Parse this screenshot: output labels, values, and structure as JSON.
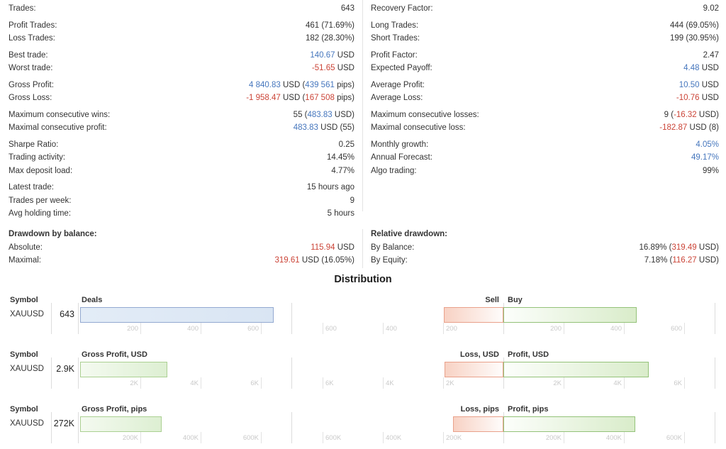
{
  "colors": {
    "k": "#333333",
    "b": "#4576bd",
    "r": "#cb4437",
    "tick": "#c9c9c9"
  },
  "stats": {
    "left": {
      "groups": [
        {
          "rows": [
            {
              "label": "Trades:",
              "value": [
                [
                  "643",
                  "k"
                ]
              ]
            }
          ]
        },
        {
          "rows": [
            {
              "label": "Profit Trades:",
              "value": [
                [
                  "461 (71.69%)",
                  "k"
                ]
              ]
            },
            {
              "label": "Loss Trades:",
              "value": [
                [
                  "182 (28.30%)",
                  "k"
                ]
              ]
            }
          ]
        },
        {
          "rows": [
            {
              "label": "Best trade:",
              "value": [
                [
                  "140.67",
                  "b"
                ],
                [
                  " USD",
                  "k"
                ]
              ]
            },
            {
              "label": "Worst trade:",
              "value": [
                [
                  "-51.65",
                  "r"
                ],
                [
                  " USD",
                  "k"
                ]
              ]
            }
          ]
        },
        {
          "rows": [
            {
              "label": "Gross Profit:",
              "value": [
                [
                  "4 840.83",
                  "b"
                ],
                [
                  " USD (",
                  "k"
                ],
                [
                  "439 561",
                  "b"
                ],
                [
                  " pips)",
                  "k"
                ]
              ]
            },
            {
              "label": "Gross Loss:",
              "value": [
                [
                  "-1 958.47",
                  "r"
                ],
                [
                  " USD (",
                  "k"
                ],
                [
                  "167 508",
                  "r"
                ],
                [
                  " pips)",
                  "k"
                ]
              ]
            }
          ]
        },
        {
          "rows": [
            {
              "label": "Maximum consecutive wins:",
              "value": [
                [
                  "55 (",
                  "k"
                ],
                [
                  "483.83",
                  "b"
                ],
                [
                  " USD)",
                  "k"
                ]
              ]
            },
            {
              "label": "Maximal consecutive profit:",
              "value": [
                [
                  "483.83",
                  "b"
                ],
                [
                  " USD (55)",
                  "k"
                ]
              ]
            }
          ]
        },
        {
          "rows": [
            {
              "label": "Sharpe Ratio:",
              "value": [
                [
                  "0.25",
                  "k"
                ]
              ]
            },
            {
              "label": "Trading activity:",
              "value": [
                [
                  "14.45%",
                  "k"
                ]
              ]
            },
            {
              "label": "Max deposit load:",
              "value": [
                [
                  "4.77%",
                  "k"
                ]
              ]
            }
          ]
        },
        {
          "rows": [
            {
              "label": "Latest trade:",
              "value": [
                [
                  "15 hours ago",
                  "k"
                ]
              ]
            },
            {
              "label": "Trades per week:",
              "value": [
                [
                  "9",
                  "k"
                ]
              ]
            },
            {
              "label": "Avg holding time:",
              "value": [
                [
                  "5 hours",
                  "k"
                ]
              ]
            }
          ]
        }
      ],
      "drawdown": {
        "rows": [
          {
            "label": "Drawdown by balance:",
            "bold": true,
            "value": []
          },
          {
            "label": "Absolute:",
            "value": [
              [
                "115.94",
                "r"
              ],
              [
                " USD",
                "k"
              ]
            ]
          },
          {
            "label": "Maximal:",
            "value": [
              [
                "319.61",
                "r"
              ],
              [
                " USD (16.05%)",
                "k"
              ]
            ]
          }
        ]
      }
    },
    "right": {
      "groups": [
        {
          "rows": [
            {
              "label": "Recovery Factor:",
              "value": [
                [
                  "9.02",
                  "k"
                ]
              ]
            }
          ]
        },
        {
          "rows": [
            {
              "label": "Long Trades:",
              "value": [
                [
                  "444 (69.05%)",
                  "k"
                ]
              ]
            },
            {
              "label": "Short Trades:",
              "value": [
                [
                  "199 (30.95%)",
                  "k"
                ]
              ]
            }
          ]
        },
        {
          "rows": [
            {
              "label": "Profit Factor:",
              "value": [
                [
                  "2.47",
                  "k"
                ]
              ]
            },
            {
              "label": "Expected Payoff:",
              "value": [
                [
                  "4.48",
                  "b"
                ],
                [
                  " USD",
                  "k"
                ]
              ]
            }
          ]
        },
        {
          "rows": [
            {
              "label": "Average Profit:",
              "value": [
                [
                  "10.50",
                  "b"
                ],
                [
                  " USD",
                  "k"
                ]
              ]
            },
            {
              "label": "Average Loss:",
              "value": [
                [
                  "-10.76",
                  "r"
                ],
                [
                  " USD",
                  "k"
                ]
              ]
            }
          ]
        },
        {
          "rows": [
            {
              "label": "Maximum consecutive losses:",
              "value": [
                [
                  "9 (",
                  "k"
                ],
                [
                  "-16.32",
                  "r"
                ],
                [
                  " USD)",
                  "k"
                ]
              ]
            },
            {
              "label": "Maximal consecutive loss:",
              "value": [
                [
                  "-182.87",
                  "r"
                ],
                [
                  " USD (8)",
                  "k"
                ]
              ]
            }
          ]
        },
        {
          "rows": [
            {
              "label": "Monthly growth:",
              "value": [
                [
                  "4.05%",
                  "b"
                ]
              ]
            },
            {
              "label": "Annual Forecast:",
              "value": [
                [
                  "49.17%",
                  "b"
                ]
              ]
            },
            {
              "label": "Algo trading:",
              "value": [
                [
                  "99%",
                  "k"
                ]
              ]
            }
          ]
        }
      ],
      "drawdown": {
        "rows": [
          {
            "label": "Relative drawdown:",
            "bold": true,
            "value": []
          },
          {
            "label": "By Balance:",
            "value": [
              [
                "16.89% (",
                "k"
              ],
              [
                "319.49",
                "r"
              ],
              [
                " USD)",
                "k"
              ]
            ]
          },
          {
            "label": "By Equity:",
            "value": [
              [
                "7.18% (",
                "k"
              ],
              [
                "116.27",
                "r"
              ],
              [
                " USD)",
                "k"
              ]
            ]
          }
        ]
      }
    }
  },
  "distribution": {
    "title": "Distribution",
    "symbol_header": "Symbol"
  },
  "chart_data": {
    "type": "bar",
    "title": "Distribution",
    "orientation": "horizontal",
    "rows": [
      {
        "symbol": "XAUUSD",
        "total_display": "643",
        "total_value": 643,
        "left_title": "Deals",
        "left_color": "blue",
        "axis_max": 700,
        "tick_step": 200,
        "ticks": [
          "200",
          "400",
          "600"
        ],
        "neg_title": "Sell",
        "pos_title": "Buy",
        "neg_value": 199,
        "pos_value": 444
      },
      {
        "symbol": "XAUUSD",
        "total_display": "2.9K",
        "total_value": 2900,
        "left_title": "Gross Profit, USD",
        "left_color": "green",
        "axis_max": 7000,
        "tick_step": 2000,
        "ticks": [
          "2K",
          "4K",
          "6K"
        ],
        "neg_title": "Loss, USD",
        "pos_title": "Profit, USD",
        "neg_value": 1958.47,
        "pos_value": 4840.83
      },
      {
        "symbol": "XAUUSD",
        "total_display": "272K",
        "total_value": 272000,
        "left_title": "Gross Profit, pips",
        "left_color": "green",
        "axis_max": 700000,
        "tick_step": 200000,
        "ticks": [
          "200K",
          "400K",
          "600K"
        ],
        "neg_title": "Loss, pips",
        "pos_title": "Profit, pips",
        "neg_value": 167508,
        "pos_value": 439561
      }
    ]
  }
}
